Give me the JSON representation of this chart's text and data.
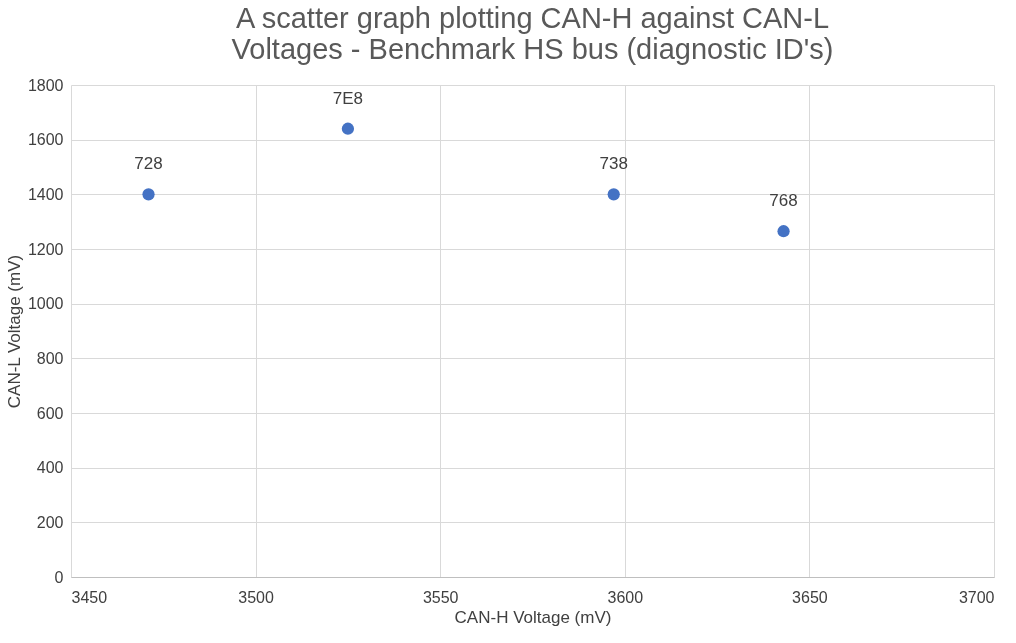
{
  "chart_data": {
    "type": "scatter",
    "title": [
      "A scatter graph plotting CAN-H against CAN-L",
      "Voltages - Benchmark HS bus (diagnostic ID's)"
    ],
    "xlabel": "CAN-H Voltage (mV)",
    "ylabel": "CAN-L Voltage (mV)",
    "x": [
      3471,
      3525,
      3597,
      3643
    ],
    "series": [
      {
        "color": "#4472c4",
        "values": [
          1400,
          1640,
          1400,
          1265
        ]
      }
    ],
    "annotations": [
      {
        "text": "728",
        "x": 3471,
        "y": 1400
      },
      {
        "text": "7E8",
        "x": 3525,
        "y": 1640
      },
      {
        "text": "738",
        "x": 3597,
        "y": 1400
      },
      {
        "text": "768",
        "x": 3643,
        "y": 1265
      }
    ],
    "xlim": [
      3450,
      3700
    ],
    "xticks": [
      3450,
      3500,
      3550,
      3600,
      3650,
      3700
    ],
    "ylim": [
      0,
      1800
    ],
    "yticks": [
      0,
      200,
      400,
      600,
      800,
      1000,
      1200,
      1400,
      1600,
      1800
    ],
    "grid": true,
    "marker": "circle"
  }
}
